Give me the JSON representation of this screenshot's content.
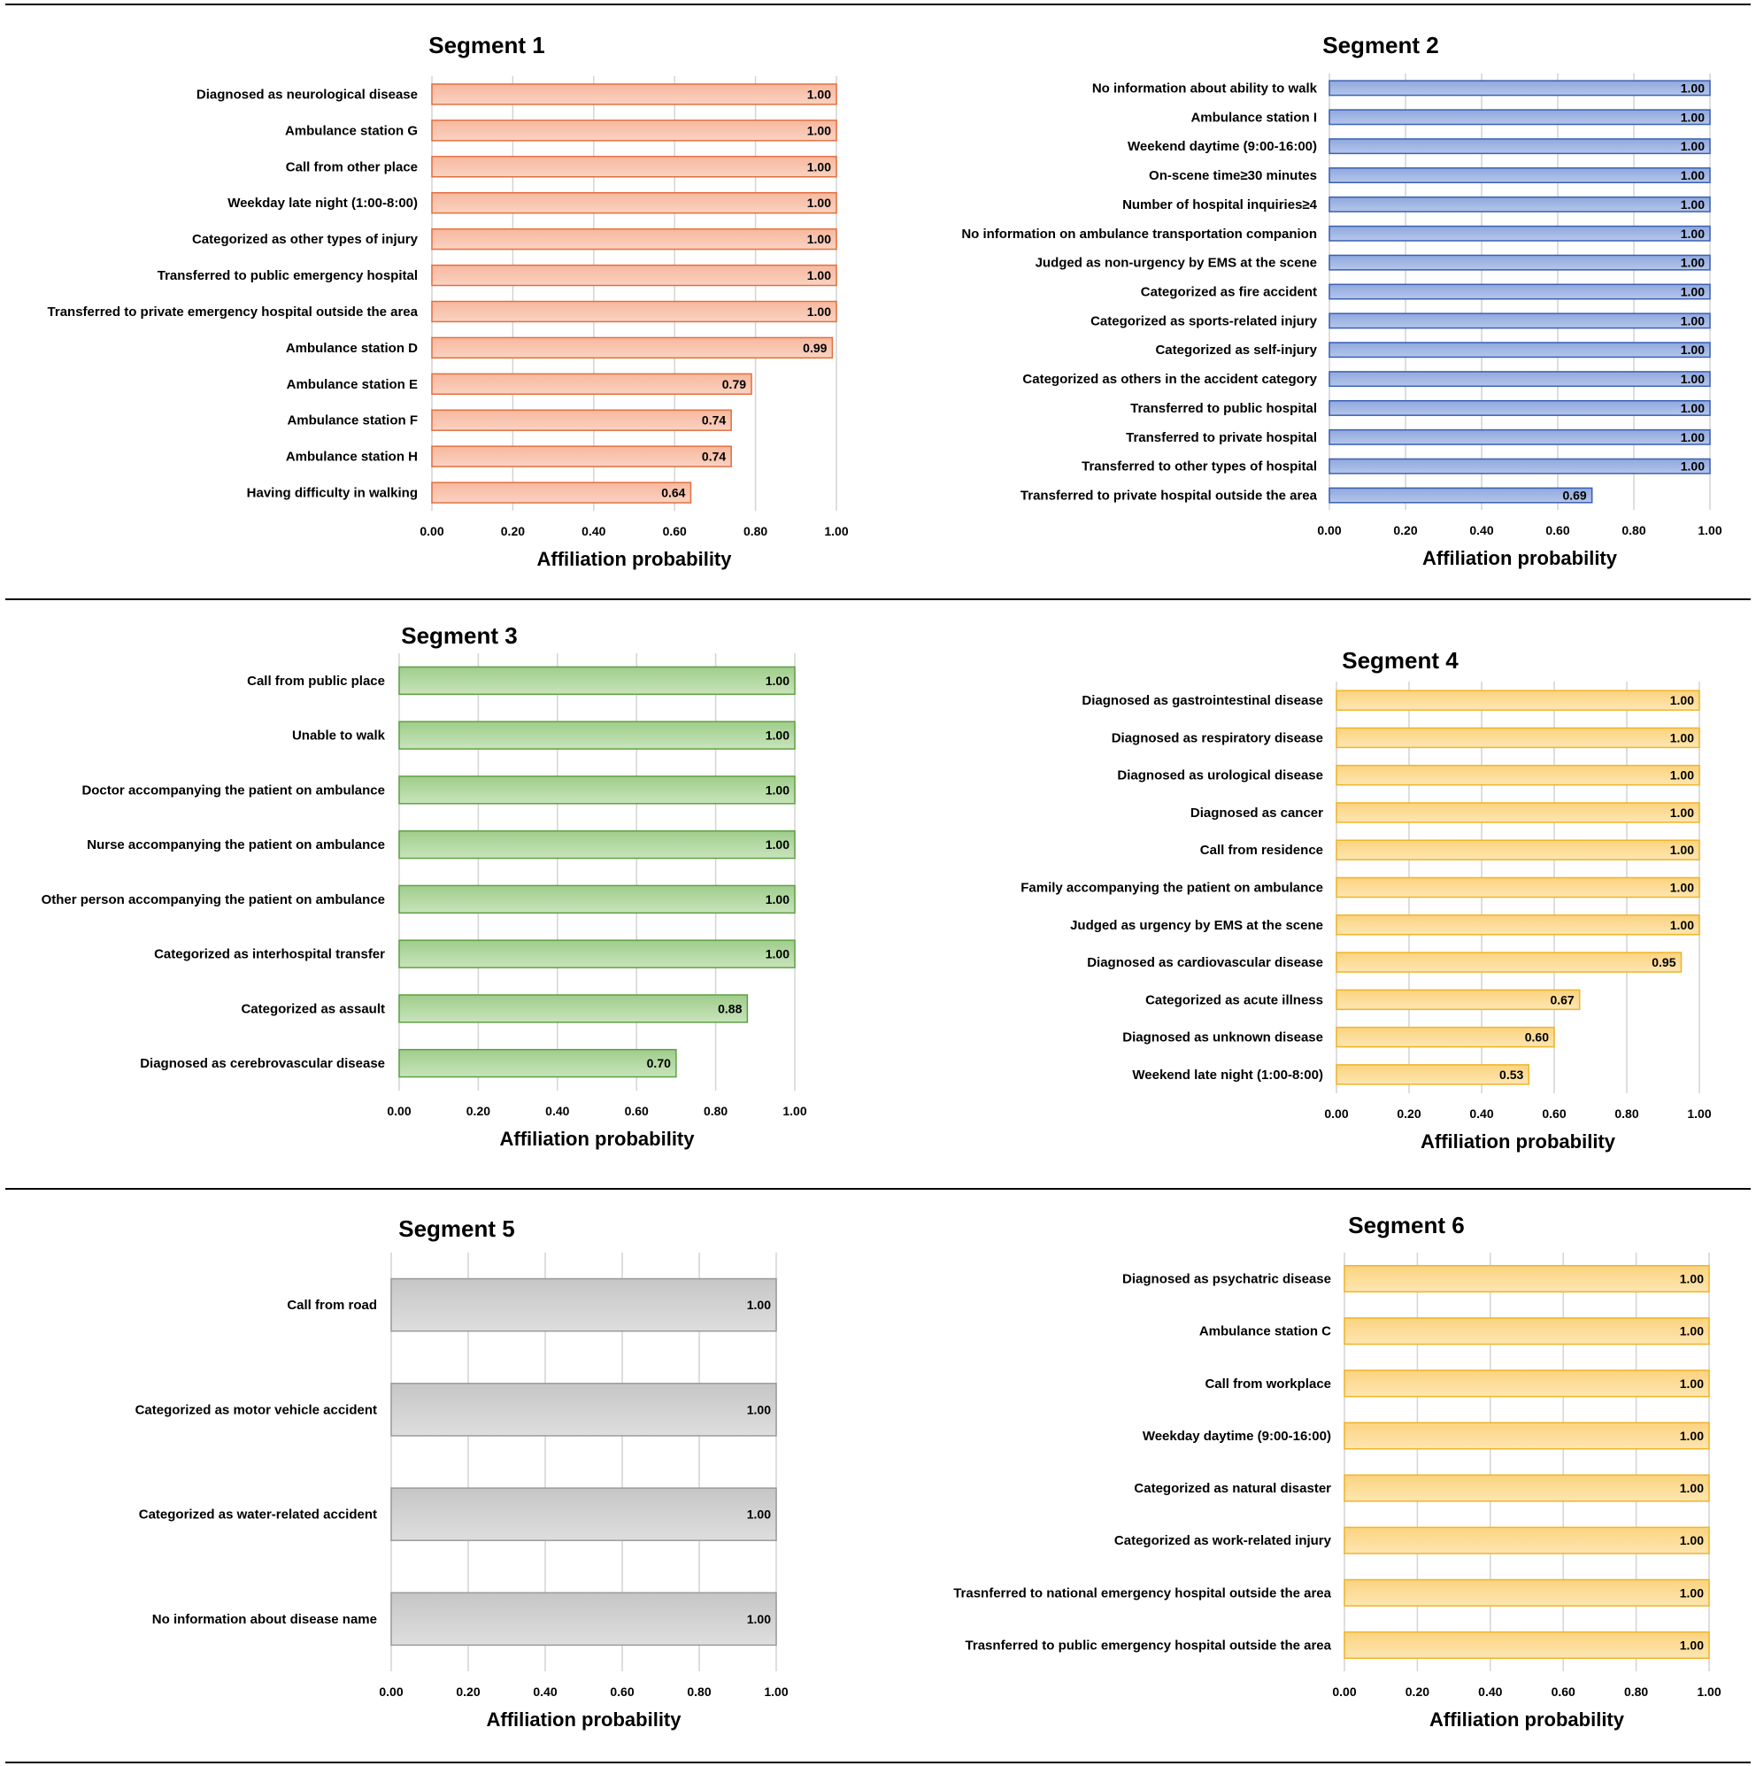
{
  "chart_data": [
    {
      "type": "bar",
      "orientation": "horizontal",
      "title": "Segment 1",
      "xlabel": "Affiliation probability",
      "xlim": [
        0,
        1
      ],
      "xticks": [
        "0.00",
        "0.20",
        "0.40",
        "0.60",
        "0.80",
        "1.00"
      ],
      "grid": true,
      "categories": [
        "Diagnosed as neurological disease",
        "Ambulance station G",
        "Call from other place",
        "Weekday late night (1:00-8:00)",
        "Categorized as other types of injury",
        "Transferred to public emergency hospital",
        "Transferred to private emergency hospital outside the area",
        "Ambulance station D",
        "Ambulance station E",
        "Ambulance station F",
        "Ambulance station H",
        "Having difficulty in walking"
      ],
      "values": [
        1.0,
        1.0,
        1.0,
        1.0,
        1.0,
        1.0,
        1.0,
        0.99,
        0.79,
        0.74,
        0.74,
        0.64
      ],
      "value_labels": [
        "1.00",
        "1.00",
        "1.00",
        "1.00",
        "1.00",
        "1.00",
        "1.00",
        "0.99",
        "0.79",
        "0.74",
        "0.74",
        "0.64"
      ],
      "colors": {
        "fill_top": "#f7b89e",
        "fill_bottom": "#fad2c2",
        "stroke": "#e2703f"
      }
    },
    {
      "type": "bar",
      "orientation": "horizontal",
      "title": "Segment 2",
      "xlabel": "Affiliation probability",
      "xlim": [
        0,
        1
      ],
      "xticks": [
        "0.00",
        "0.20",
        "0.40",
        "0.60",
        "0.80",
        "1.00"
      ],
      "grid": true,
      "categories": [
        "No information about ability to walk",
        "Ambulance station I",
        "Weekend daytime (9:00-16:00)",
        "On-scene time≥30 minutes",
        "Number of hospital inquiries≥4",
        "No information on ambulance transportation companion",
        "Judged as non-urgency by EMS at the scene",
        "Categorized as fire accident",
        "Categorized as sports-related injury",
        "Categorized as self-injury",
        "Categorized as others in the accident category",
        "Transferred to public hospital",
        "Transferred to private hospital",
        "Transferred to other types of hospital",
        "Transferred to private hospital outside the area"
      ],
      "values": [
        1.0,
        1.0,
        1.0,
        1.0,
        1.0,
        1.0,
        1.0,
        1.0,
        1.0,
        1.0,
        1.0,
        1.0,
        1.0,
        1.0,
        0.69
      ],
      "value_labels": [
        "1.00",
        "1.00",
        "1.00",
        "1.00",
        "1.00",
        "1.00",
        "1.00",
        "1.00",
        "1.00",
        "1.00",
        "1.00",
        "1.00",
        "1.00",
        "1.00",
        "0.69"
      ],
      "colors": {
        "fill_top": "#8fa8de",
        "fill_bottom": "#b5c6ea",
        "stroke": "#3b5fb3"
      }
    },
    {
      "type": "bar",
      "orientation": "horizontal",
      "title": "Segment 3",
      "xlabel": "Affiliation probability",
      "xlim": [
        0,
        1
      ],
      "xticks": [
        "0.00",
        "0.20",
        "0.40",
        "0.60",
        "0.80",
        "1.00"
      ],
      "grid": true,
      "categories": [
        "Call from public place",
        "Unable to walk",
        "Doctor accompanying the patient on ambulance",
        "Nurse accompanying the patient on ambulance",
        "Other person accompanying the patient on ambulance",
        "Categorized as interhospital transfer",
        "Categorized as assault",
        "Diagnosed as cerebrovascular disease"
      ],
      "values": [
        1.0,
        1.0,
        1.0,
        1.0,
        1.0,
        1.0,
        0.88,
        0.7
      ],
      "value_labels": [
        "1.00",
        "1.00",
        "1.00",
        "1.00",
        "1.00",
        "1.00",
        "0.88",
        "0.70"
      ],
      "colors": {
        "fill_top": "#9fcd8b",
        "fill_bottom": "#c8e4bb",
        "stroke": "#5ea043"
      }
    },
    {
      "type": "bar",
      "orientation": "horizontal",
      "title": "Segment 4",
      "xlabel": "Affiliation probability",
      "xlim": [
        0,
        1
      ],
      "xticks": [
        "0.00",
        "0.20",
        "0.40",
        "0.60",
        "0.80",
        "1.00"
      ],
      "grid": true,
      "categories": [
        "Diagnosed as gastrointestinal disease",
        "Diagnosed as respiratory disease",
        "Diagnosed as urological disease",
        "Diagnosed as cancer",
        "Call from residence",
        "Family accompanying the patient on ambulance",
        "Judged as urgency by EMS at the scene",
        "Diagnosed as cardiovascular disease",
        "Categorized as acute illness",
        "Diagnosed as unknown disease",
        "Weekend late night (1:00-8:00)"
      ],
      "values": [
        1.0,
        1.0,
        1.0,
        1.0,
        1.0,
        1.0,
        1.0,
        0.95,
        0.67,
        0.6,
        0.53
      ],
      "value_labels": [
        "1.00",
        "1.00",
        "1.00",
        "1.00",
        "1.00",
        "1.00",
        "1.00",
        "0.95",
        "0.67",
        "0.60",
        "0.53"
      ],
      "colors": {
        "fill_top": "#fcd37f",
        "fill_bottom": "#fde6b2",
        "stroke": "#f0b429"
      }
    },
    {
      "type": "bar",
      "orientation": "horizontal",
      "title": "Segment 5",
      "xlabel": "Affiliation probability",
      "xlim": [
        0,
        1
      ],
      "xticks": [
        "0.00",
        "0.20",
        "0.40",
        "0.60",
        "0.80",
        "1.00"
      ],
      "grid": true,
      "categories": [
        "Call from road",
        "Categorized as motor vehicle accident",
        "Categorized as water-related accident",
        "No information about disease name"
      ],
      "values": [
        1.0,
        1.0,
        1.0,
        1.0
      ],
      "value_labels": [
        "1.00",
        "1.00",
        "1.00",
        "1.00"
      ],
      "colors": {
        "fill_top": "#c6c6c6",
        "fill_bottom": "#dedede",
        "stroke": "#9a9a9a"
      }
    },
    {
      "type": "bar",
      "orientation": "horizontal",
      "title": "Segment 6",
      "xlabel": "Affiliation probability",
      "xlim": [
        0,
        1
      ],
      "xticks": [
        "0.00",
        "0.20",
        "0.40",
        "0.60",
        "0.80",
        "1.00"
      ],
      "grid": true,
      "categories": [
        "Diagnosed as psychatric disease",
        "Ambulance station C",
        "Call from workplace",
        "Weekday daytime (9:00-16:00)",
        "Categorized as natural disaster",
        "Categorized as work-related injury",
        "Trasnferred to national emergency hospital outside the area",
        "Trasnferred to public emergency hospital outside the area"
      ],
      "values": [
        1.0,
        1.0,
        1.0,
        1.0,
        1.0,
        1.0,
        1.0,
        1.0
      ],
      "value_labels": [
        "1.00",
        "1.00",
        "1.00",
        "1.00",
        "1.00",
        "1.00",
        "1.00",
        "1.00"
      ],
      "colors": {
        "fill_top": "#fcd37f",
        "fill_bottom": "#fde6b2",
        "stroke": "#f0b429"
      }
    }
  ]
}
